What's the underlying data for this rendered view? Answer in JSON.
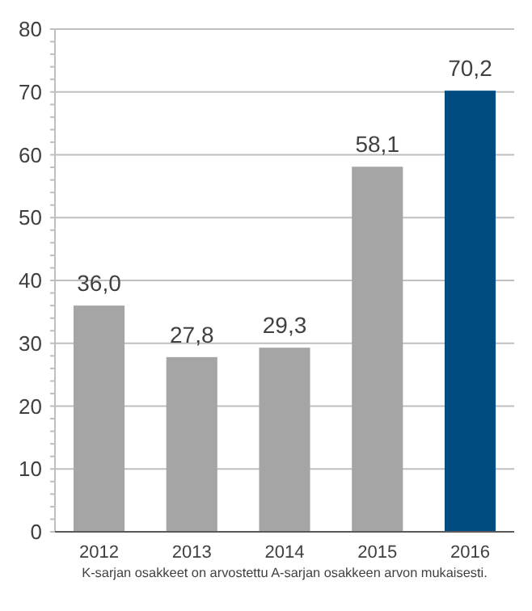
{
  "chart_data": {
    "type": "bar",
    "categories": [
      "2012",
      "2013",
      "2014",
      "2015",
      "2016"
    ],
    "values": [
      36.0,
      27.8,
      29.3,
      58.1,
      70.2
    ],
    "colors": [
      "#a5a5a5",
      "#a5a5a5",
      "#a5a5a5",
      "#a5a5a5",
      "#004b80"
    ],
    "value_labels": [
      "36,0",
      "27,8",
      "29,3",
      "58,1",
      "70,2"
    ],
    "ylim": [
      0,
      80
    ],
    "yticks": [
      0,
      10,
      20,
      30,
      40,
      50,
      60,
      70,
      80
    ],
    "grid": "y",
    "annotations": [
      "K-sarjan osakkeet on arvostettu A-sarjan osakkeen arvon mukaisesti."
    ]
  }
}
